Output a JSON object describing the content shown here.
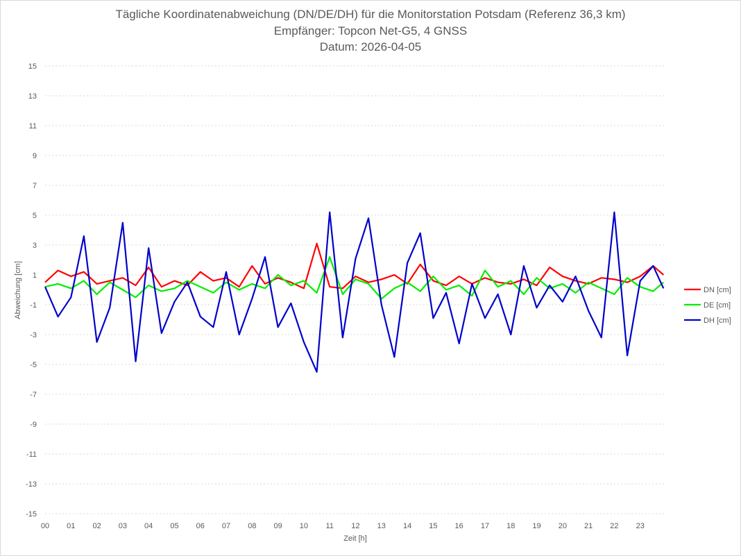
{
  "chart_data": {
    "type": "line",
    "title": [
      "Tägliche Koordinatenabweichung (DN/DE/DH) für die Monitorstation Potsdam (Referenz 36,3 km)",
      "Empfänger: Topcon Net-G5, 4 GNSS",
      "Datum: 2026-04-05"
    ],
    "xlabel": "Zeit [h]",
    "ylabel": "Abweichung [cm]",
    "xlim": [
      0,
      24
    ],
    "ylim": [
      -15,
      15
    ],
    "yticks": [
      "15",
      "13",
      "11",
      "9",
      "7",
      "5",
      "3",
      "1",
      "-1",
      "-3",
      "-5",
      "-7",
      "-9",
      "-11",
      "-13",
      "-15"
    ],
    "xticks": [
      "00",
      "01",
      "02",
      "03",
      "04",
      "05",
      "06",
      "07",
      "08",
      "09",
      "10",
      "11",
      "12",
      "13",
      "14",
      "15",
      "16",
      "17",
      "18",
      "19",
      "20",
      "21",
      "22",
      "23"
    ],
    "grid": true,
    "legend_position": "right",
    "x": [
      0,
      0.5,
      1,
      1.5,
      2,
      2.5,
      3,
      3.5,
      4,
      4.5,
      5,
      5.5,
      6,
      6.5,
      7,
      7.5,
      8,
      8.5,
      9,
      9.5,
      10,
      10.5,
      11,
      11.5,
      12,
      12.5,
      13,
      13.5,
      14,
      14.5,
      15,
      15.5,
      16,
      16.5,
      17,
      17.5,
      18,
      18.5,
      19,
      19.5,
      20,
      20.5,
      21,
      21.5,
      22,
      22.5,
      23,
      23.5,
      23.9
    ],
    "series": [
      {
        "name": "DN [cm]",
        "color": "#ff0000",
        "values": [
          0.5,
          1.3,
          0.9,
          1.2,
          0.4,
          0.6,
          0.8,
          0.3,
          1.5,
          0.2,
          0.6,
          0.3,
          1.2,
          0.6,
          0.8,
          0.2,
          1.6,
          0.4,
          0.8,
          0.5,
          0.1,
          3.1,
          0.2,
          0.1,
          0.9,
          0.5,
          0.7,
          1.0,
          0.4,
          1.7,
          0.6,
          0.3,
          0.9,
          0.4,
          0.8,
          0.5,
          0.4,
          0.7,
          0.3,
          1.5,
          0.9,
          0.6,
          0.4,
          0.8,
          0.7,
          0.5,
          0.9,
          1.6,
          1.0
        ]
      },
      {
        "name": "DE [cm]",
        "color": "#00ee00",
        "values": [
          0.2,
          0.4,
          0.1,
          0.6,
          -0.3,
          0.5,
          0.0,
          -0.5,
          0.3,
          -0.1,
          0.1,
          0.6,
          0.2,
          -0.2,
          0.5,
          0.0,
          0.4,
          0.1,
          1.0,
          0.3,
          0.6,
          -0.2,
          2.2,
          -0.3,
          0.7,
          0.4,
          -0.6,
          0.1,
          0.5,
          -0.1,
          0.9,
          0.0,
          0.3,
          -0.4,
          1.3,
          0.2,
          0.6,
          -0.3,
          0.8,
          0.1,
          0.4,
          -0.2,
          0.5,
          0.1,
          -0.3,
          0.8,
          0.2,
          -0.1,
          0.5
        ]
      },
      {
        "name": "DH [cm]",
        "color": "#0000cc",
        "values": [
          0.2,
          -1.8,
          -0.5,
          3.6,
          -3.5,
          -1.2,
          4.5,
          -4.8,
          2.8,
          -2.9,
          -0.8,
          0.5,
          -1.8,
          -2.5,
          1.2,
          -3.0,
          -0.6,
          2.2,
          -2.5,
          -0.9,
          -3.5,
          -5.5,
          5.2,
          -3.2,
          2.1,
          4.8,
          -1.0,
          -4.5,
          1.8,
          3.8,
          -1.9,
          -0.2,
          -3.6,
          0.4,
          -1.9,
          -0.3,
          -3.0,
          1.6,
          -1.2,
          0.3,
          -0.8,
          0.9,
          -1.4,
          -3.2,
          5.2,
          -4.4,
          0.6,
          1.6,
          0.1
        ]
      }
    ]
  }
}
